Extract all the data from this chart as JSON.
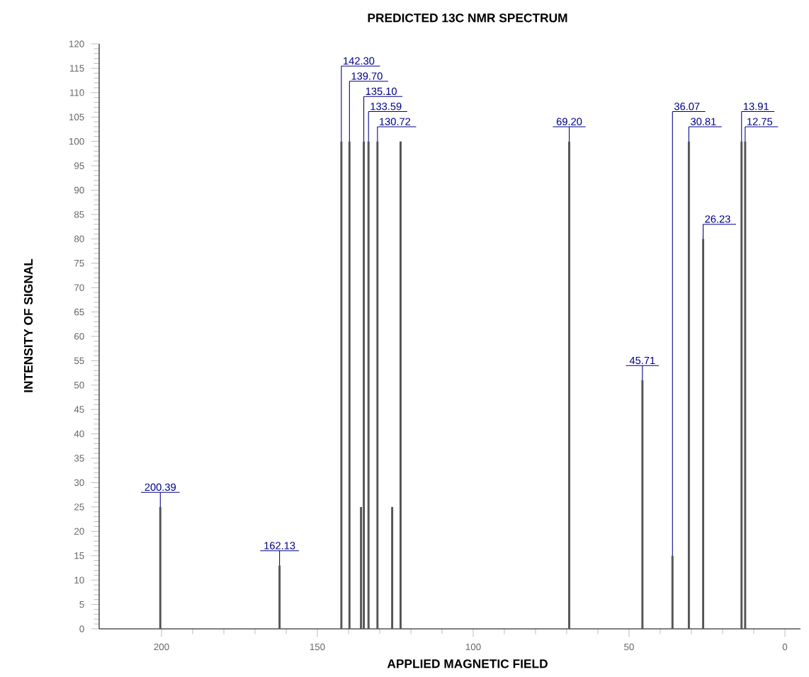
{
  "chart_data": {
    "type": "bar",
    "title": "PREDICTED 13C NMR SPECTRUM",
    "xlabel": "APPLIED MAGNETIC FIELD",
    "ylabel": "INTENSITY OF SIGNAL",
    "x": [
      200.39,
      162.13,
      142.3,
      139.7,
      136.0,
      135.1,
      133.59,
      130.72,
      126.0,
      123.3,
      69.2,
      45.71,
      36.07,
      30.81,
      26.23,
      13.91,
      12.75
    ],
    "values": [
      25,
      13,
      100,
      100,
      25,
      100,
      100,
      100,
      25,
      100,
      100,
      51,
      15,
      100,
      80,
      100,
      100
    ],
    "annotations": [
      {
        "text": "200.39",
        "x": 200.39,
        "y": 25
      },
      {
        "text": "162.13",
        "x": 162.13,
        "y": 13
      },
      {
        "text": "142.30",
        "x": 142.3,
        "y": 100
      },
      {
        "text": "139.70",
        "x": 139.7,
        "y": 100
      },
      {
        "text": "135.10",
        "x": 135.1,
        "y": 100
      },
      {
        "text": "133.59",
        "x": 133.59,
        "y": 100
      },
      {
        "text": "130.72",
        "x": 130.72,
        "y": 100
      },
      {
        "text": "69.20",
        "x": 69.2,
        "y": 100
      },
      {
        "text": "45.71",
        "x": 45.71,
        "y": 51
      },
      {
        "text": "36.07",
        "x": 36.07,
        "y": 15
      },
      {
        "text": "30.81",
        "x": 30.81,
        "y": 100
      },
      {
        "text": "26.23",
        "x": 26.23,
        "y": 80
      },
      {
        "text": "13.91",
        "x": 13.91,
        "y": 100
      },
      {
        "text": "12.75",
        "x": 12.75,
        "y": 100
      }
    ],
    "color": "#555555",
    "xlim": [
      220,
      -5
    ],
    "ylim": [
      0,
      120
    ],
    "xticks": [
      200,
      150,
      100,
      50,
      0
    ],
    "yticks": [
      0,
      5,
      10,
      15,
      20,
      25,
      30,
      35,
      40,
      45,
      50,
      55,
      60,
      65,
      70,
      75,
      80,
      85,
      90,
      95,
      100,
      105,
      110,
      115,
      120
    ],
    "grid": false
  }
}
